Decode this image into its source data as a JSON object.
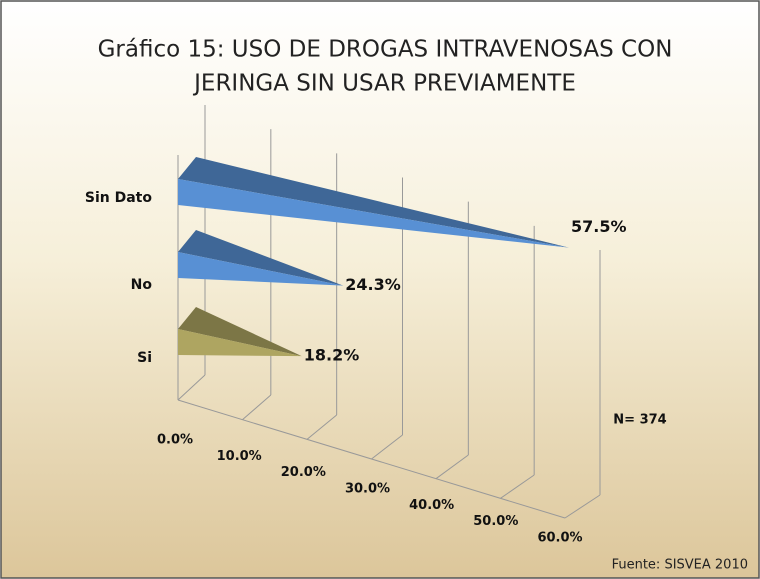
{
  "chart_data": {
    "type": "bar3d",
    "orientation": "horizontal",
    "title": [
      "Gráfico 15:  USO DE DROGAS INTRAVENOSAS CON",
      "JERINGA SIN USAR PREVIAMENTE"
    ],
    "categories": [
      "Sin Dato",
      "No",
      "Si"
    ],
    "values": [
      57.5,
      24.3,
      18.2
    ],
    "value_labels": [
      "57.5%",
      "24.3%",
      "18.2%"
    ],
    "colors": [
      "#4f81bd",
      "#4f81bd",
      "#9b9357"
    ],
    "xlim": [
      0,
      60
    ],
    "xticks": [
      {
        "value": 0,
        "label": "0.0%"
      },
      {
        "value": 10,
        "label": "10.0%"
      },
      {
        "value": 20,
        "label": "20.0%"
      },
      {
        "value": 30,
        "label": "30.0%"
      },
      {
        "value": 40,
        "label": "40.0%"
      },
      {
        "value": 50,
        "label": "50.0%"
      },
      {
        "value": 60,
        "label": "60.0%"
      }
    ],
    "grid": true,
    "annotations": [
      "N= 374",
      "Fuente: SISVEA 2010"
    ]
  }
}
